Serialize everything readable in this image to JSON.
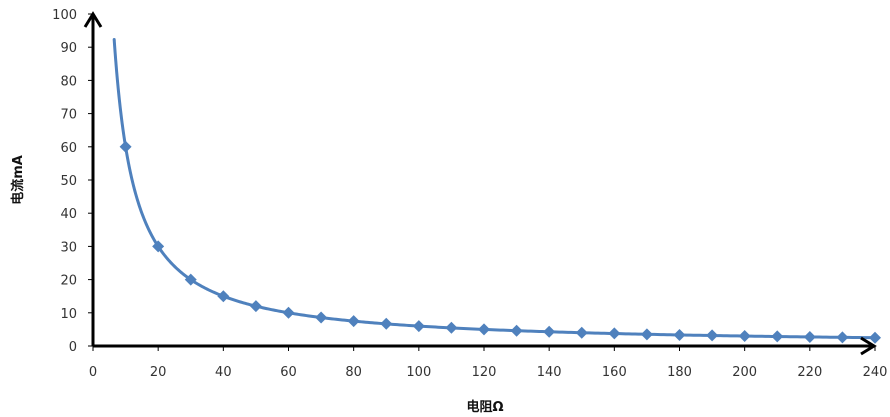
{
  "chart_data": {
    "type": "line",
    "xlabel": "电阻Ω",
    "ylabel": "电流mA",
    "xlim": [
      0,
      240
    ],
    "ylim": [
      0,
      100
    ],
    "x_ticks": [
      0,
      20,
      40,
      60,
      80,
      100,
      120,
      140,
      160,
      180,
      200,
      220,
      240
    ],
    "y_ticks": [
      0,
      10,
      20,
      30,
      40,
      50,
      60,
      70,
      80,
      90,
      100
    ],
    "grid": false,
    "markers": "diamond",
    "colors": {
      "line": "#4F81BD",
      "axis": "#000000"
    },
    "curve": {
      "relation": "y = 600 / x",
      "x_start": 6.5,
      "x_end": 240
    },
    "x": [
      10,
      20,
      30,
      40,
      50,
      60,
      70,
      80,
      90,
      100,
      110,
      120,
      130,
      140,
      150,
      160,
      170,
      180,
      190,
      200,
      210,
      220,
      230,
      240
    ],
    "y": [
      60,
      30,
      20,
      15,
      12,
      10,
      8.6,
      7.5,
      6.7,
      6,
      5.5,
      5,
      4.6,
      4.3,
      4,
      3.8,
      3.5,
      3.3,
      3.2,
      3,
      2.9,
      2.7,
      2.6,
      2.5
    ]
  }
}
